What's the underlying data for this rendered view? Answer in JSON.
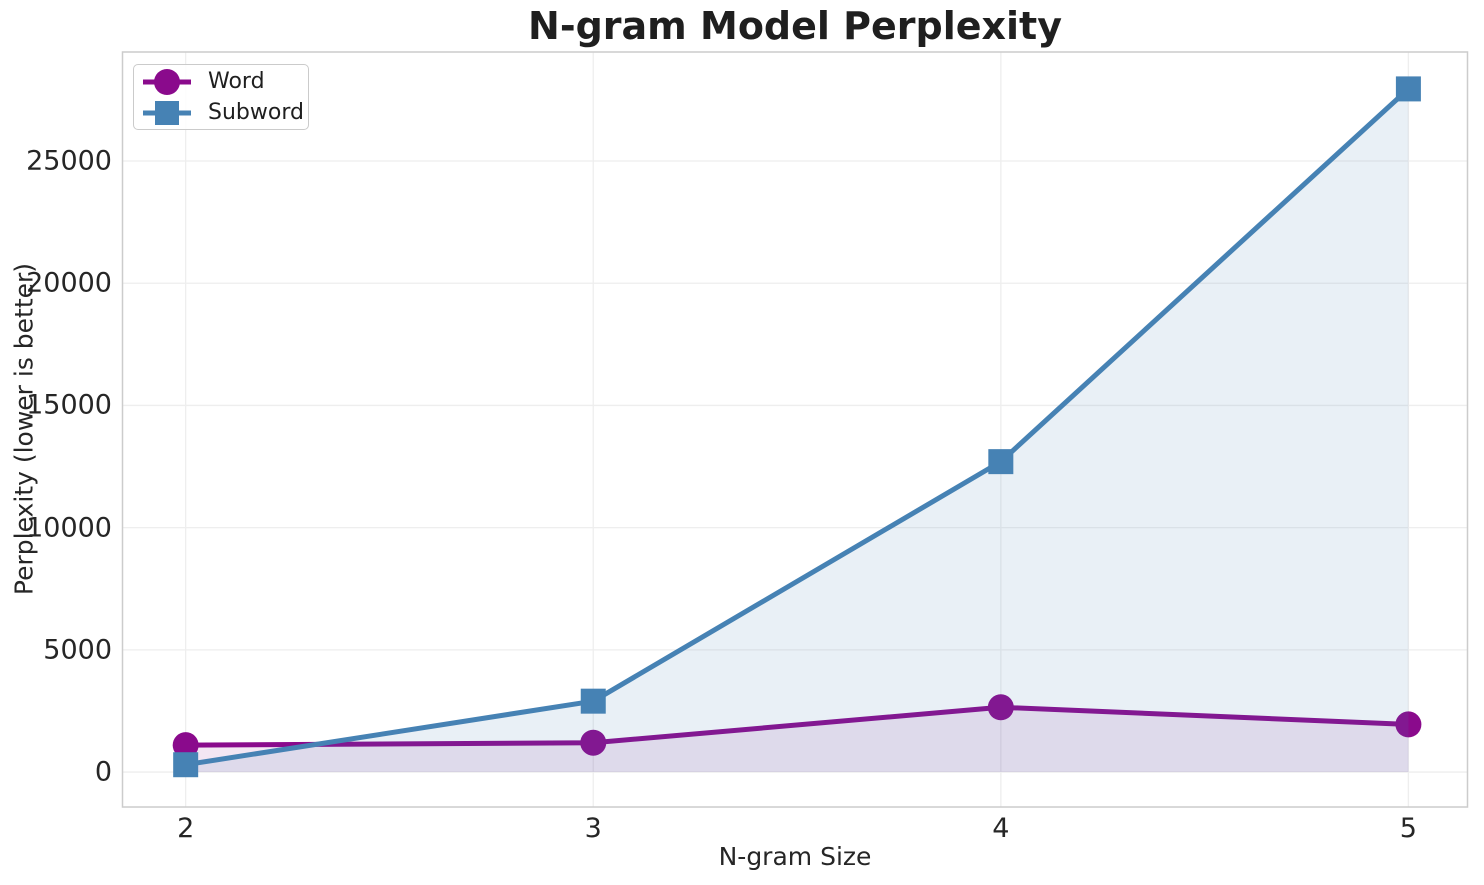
{
  "chart": {
    "title": "N-gram Model Perplexity",
    "xlabel": "N-gram Size",
    "ylabel": "Perplexity (lower is better)"
  },
  "chart_data": {
    "type": "line",
    "title": "N-gram Model Perplexity",
    "xlabel": "N-gram Size",
    "ylabel": "Perplexity (lower is better)",
    "x": [
      2,
      3,
      4,
      5
    ],
    "series": [
      {
        "name": "Word",
        "color": "#8a0a8c",
        "marker": "circle",
        "area_fill": true,
        "fill_alpha": 0.1,
        "values": [
          1100,
          1200,
          2650,
          1950
        ]
      },
      {
        "name": "Subword",
        "color": "#4682b4",
        "marker": "square",
        "area_fill": true,
        "fill_alpha": 0.12,
        "values": [
          300,
          2900,
          12700,
          27950
        ]
      }
    ],
    "xticks": [
      2,
      3,
      4,
      5
    ],
    "yticks": [
      0,
      5000,
      10000,
      15000,
      20000,
      25000
    ],
    "xlim": [
      1.845,
      5.145
    ],
    "ylim": [
      -1430,
      29460
    ],
    "grid": true,
    "legend_position": "upper left",
    "style": {
      "grid_color": "#eeeeee",
      "spine_color": "#cccccc",
      "background": "#ffffff",
      "line_width": 5,
      "marker_size": 26
    }
  }
}
